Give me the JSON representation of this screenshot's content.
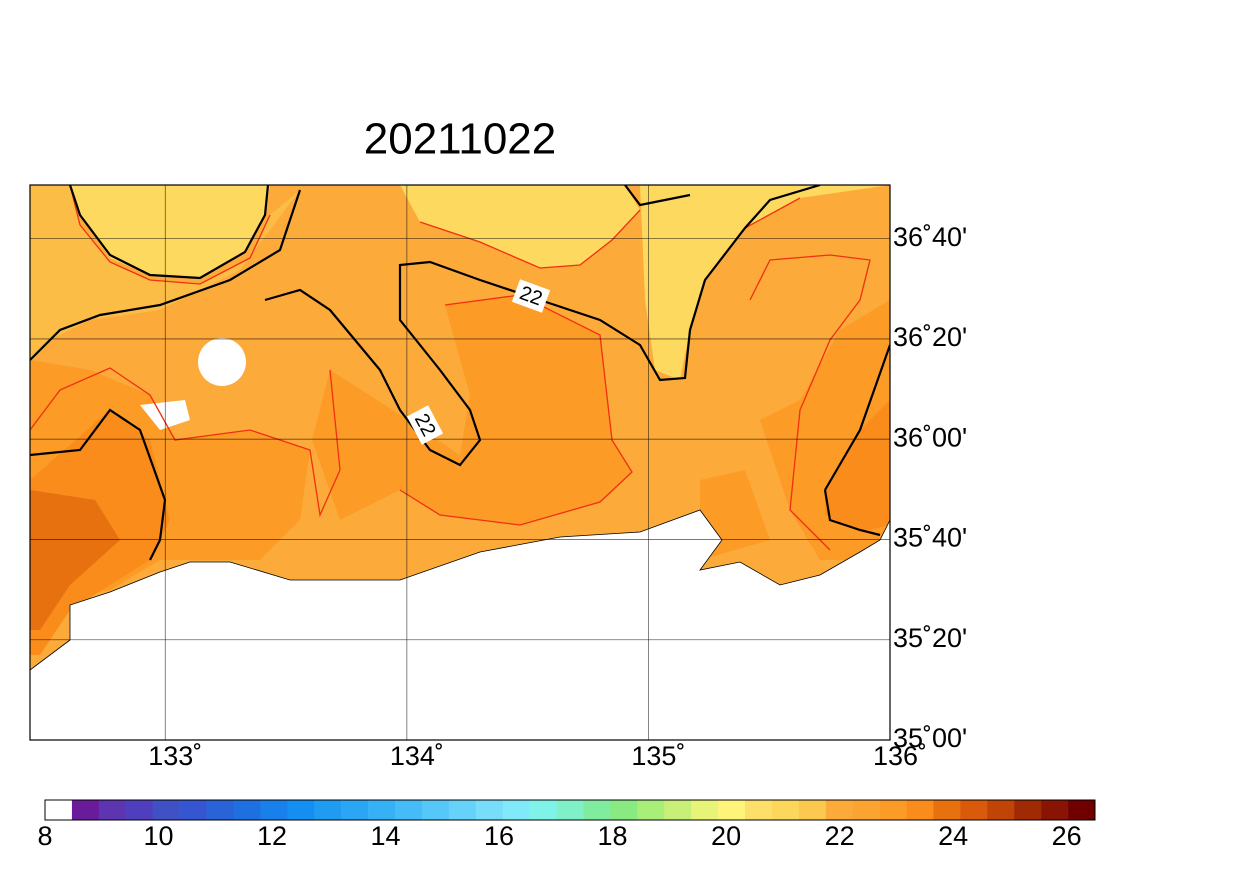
{
  "title": "20211022",
  "map": {
    "lonlim": [
      132.44,
      136.0
    ],
    "latlim": [
      35.0,
      36.845
    ],
    "lonticks": [
      {
        "value": 133,
        "label": "133˚"
      },
      {
        "value": 134,
        "label": "134˚"
      },
      {
        "value": 135,
        "label": "135˚"
      },
      {
        "value": 136,
        "label": "136˚"
      }
    ],
    "latticks": [
      {
        "value": 36.6667,
        "label": "36˚40'"
      },
      {
        "value": 36.3333,
        "label": "36˚20'"
      },
      {
        "value": 36.0,
        "label": "36˚00'"
      },
      {
        "value": 35.6667,
        "label": "35˚40'"
      },
      {
        "value": 35.3333,
        "label": "35˚20'"
      },
      {
        "value": 35.0,
        "label": "35˚00'"
      }
    ],
    "contour_labels": [
      "22",
      "22"
    ]
  },
  "colorbar": {
    "lim": [
      8,
      26.5
    ],
    "ticks": [
      8,
      10,
      12,
      14,
      16,
      18,
      20,
      22,
      24,
      26
    ],
    "colors": [
      "#ffffff",
      "#6a1b9a",
      "#5e35b1",
      "#4f3fbf",
      "#3f51c5",
      "#3556d0",
      "#2a62d8",
      "#1e6fe0",
      "#1780ea",
      "#148ef0",
      "#1f9bf2",
      "#2aa6f4",
      "#37b1f6",
      "#45bcf7",
      "#55c7f8",
      "#66d2f9",
      "#77ddfa",
      "#80eafa",
      "#80f3e8",
      "#80f0c8",
      "#80eca0",
      "#88ea80",
      "#a8ee78",
      "#c8f078",
      "#e8f478",
      "#fff47a",
      "#fde06a",
      "#fdd65c",
      "#fcc950",
      "#fcaa3a",
      "#fca432",
      "#fd9b27",
      "#f98c1a",
      "#e7700f",
      "#d85a0a",
      "#c04406",
      "#a02a04",
      "#8a1404",
      "#700000"
    ]
  }
}
